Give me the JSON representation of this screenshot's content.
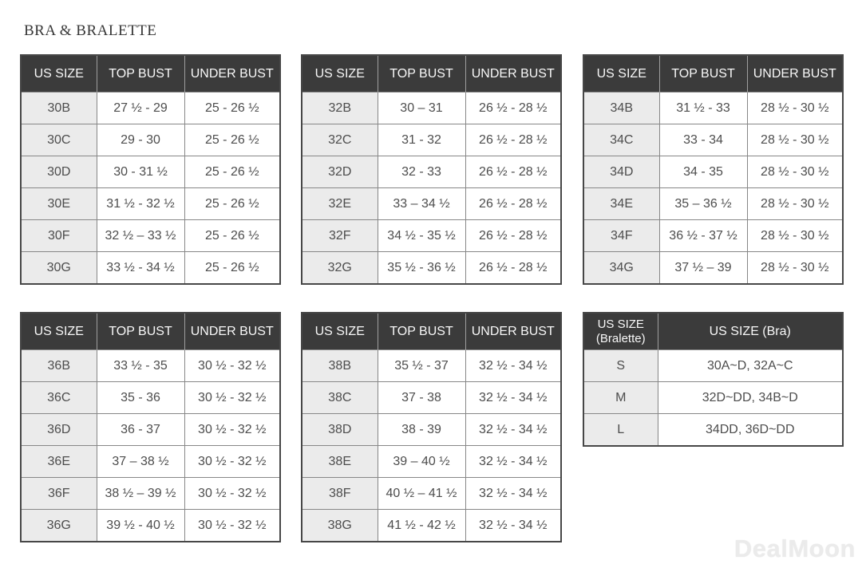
{
  "page": {
    "title": "BRA & BRALETTE",
    "watermark": "DealMoon"
  },
  "colors": {
    "header_bg": "#3b3b3b",
    "header_text": "#f8f8f8",
    "first_column_bg": "#ebebeb",
    "cell_text": "#4d4d4d",
    "outer_border": "#474747",
    "inner_border": "#878787"
  },
  "tables": [
    {
      "name": "band-30",
      "headers": [
        "US SIZE",
        "TOP BUST",
        "UNDER BUST"
      ],
      "rows": [
        [
          "30B",
          "27 ½ - 29",
          "25 - 26 ½"
        ],
        [
          "30C",
          "29 - 30",
          "25 - 26 ½"
        ],
        [
          "30D",
          "30 - 31 ½",
          "25 - 26 ½"
        ],
        [
          "30E",
          "31 ½ - 32 ½",
          "25 - 26 ½"
        ],
        [
          "30F",
          "32 ½ – 33 ½",
          "25 - 26 ½"
        ],
        [
          "30G",
          "33 ½ - 34 ½",
          "25 - 26 ½"
        ]
      ]
    },
    {
      "name": "band-32",
      "headers": [
        "US SIZE",
        "TOP BUST",
        "UNDER BUST"
      ],
      "rows": [
        [
          "32B",
          "30 – 31",
          "26 ½ - 28 ½"
        ],
        [
          "32C",
          "31 - 32",
          "26 ½ - 28 ½"
        ],
        [
          "32D",
          "32 - 33",
          "26 ½ - 28 ½"
        ],
        [
          "32E",
          "33 – 34 ½",
          "26 ½ - 28 ½"
        ],
        [
          "32F",
          "34 ½ - 35 ½",
          "26 ½ - 28 ½"
        ],
        [
          "32G",
          "35 ½ - 36 ½",
          "26 ½ - 28 ½"
        ]
      ]
    },
    {
      "name": "band-34",
      "headers": [
        "US SIZE",
        "TOP BUST",
        "UNDER BUST"
      ],
      "rows": [
        [
          "34B",
          "31 ½ - 33",
          "28 ½ - 30 ½"
        ],
        [
          "34C",
          "33 - 34",
          "28 ½ - 30 ½"
        ],
        [
          "34D",
          "34 - 35",
          "28 ½ - 30 ½"
        ],
        [
          "34E",
          "35 – 36 ½",
          "28 ½ - 30 ½"
        ],
        [
          "34F",
          "36 ½ - 37 ½",
          "28 ½ - 30 ½"
        ],
        [
          "34G",
          "37 ½  – 39",
          "28 ½ - 30 ½"
        ]
      ]
    },
    {
      "name": "band-36",
      "headers": [
        "US SIZE",
        "TOP BUST",
        "UNDER BUST"
      ],
      "rows": [
        [
          "36B",
          "33 ½ - 35",
          "30 ½ - 32 ½"
        ],
        [
          "36C",
          "35 - 36",
          "30 ½ - 32 ½"
        ],
        [
          "36D",
          "36 - 37",
          "30 ½ - 32 ½"
        ],
        [
          "36E",
          "37 – 38 ½",
          "30 ½ - 32 ½"
        ],
        [
          "36F",
          "38 ½ – 39 ½",
          "30 ½ - 32 ½"
        ],
        [
          "36G",
          "39 ½ - 40 ½",
          "30 ½ - 32 ½"
        ]
      ]
    },
    {
      "name": "band-38",
      "headers": [
        "US SIZE",
        "TOP BUST",
        "UNDER BUST"
      ],
      "rows": [
        [
          "38B",
          "35 ½ - 37",
          "32 ½ - 34 ½"
        ],
        [
          "38C",
          "37 - 38",
          "32 ½ - 34 ½"
        ],
        [
          "38D",
          "38 - 39",
          "32 ½ - 34 ½"
        ],
        [
          "38E",
          "39 – 40 ½",
          "32 ½ - 34 ½"
        ],
        [
          "38F",
          "40 ½ – 41 ½",
          "32 ½ - 34 ½"
        ],
        [
          "38G",
          "41 ½ - 42 ½",
          "32 ½ - 34 ½"
        ]
      ]
    },
    {
      "name": "bralette-conversion",
      "headers": [
        "US SIZE (Bralette)",
        "US SIZE (Bra)"
      ],
      "rows": [
        [
          "S",
          "30A~D, 32A~C"
        ],
        [
          "M",
          "32D~DD, 34B~D"
        ],
        [
          "L",
          "34DD, 36D~DD"
        ]
      ]
    }
  ]
}
